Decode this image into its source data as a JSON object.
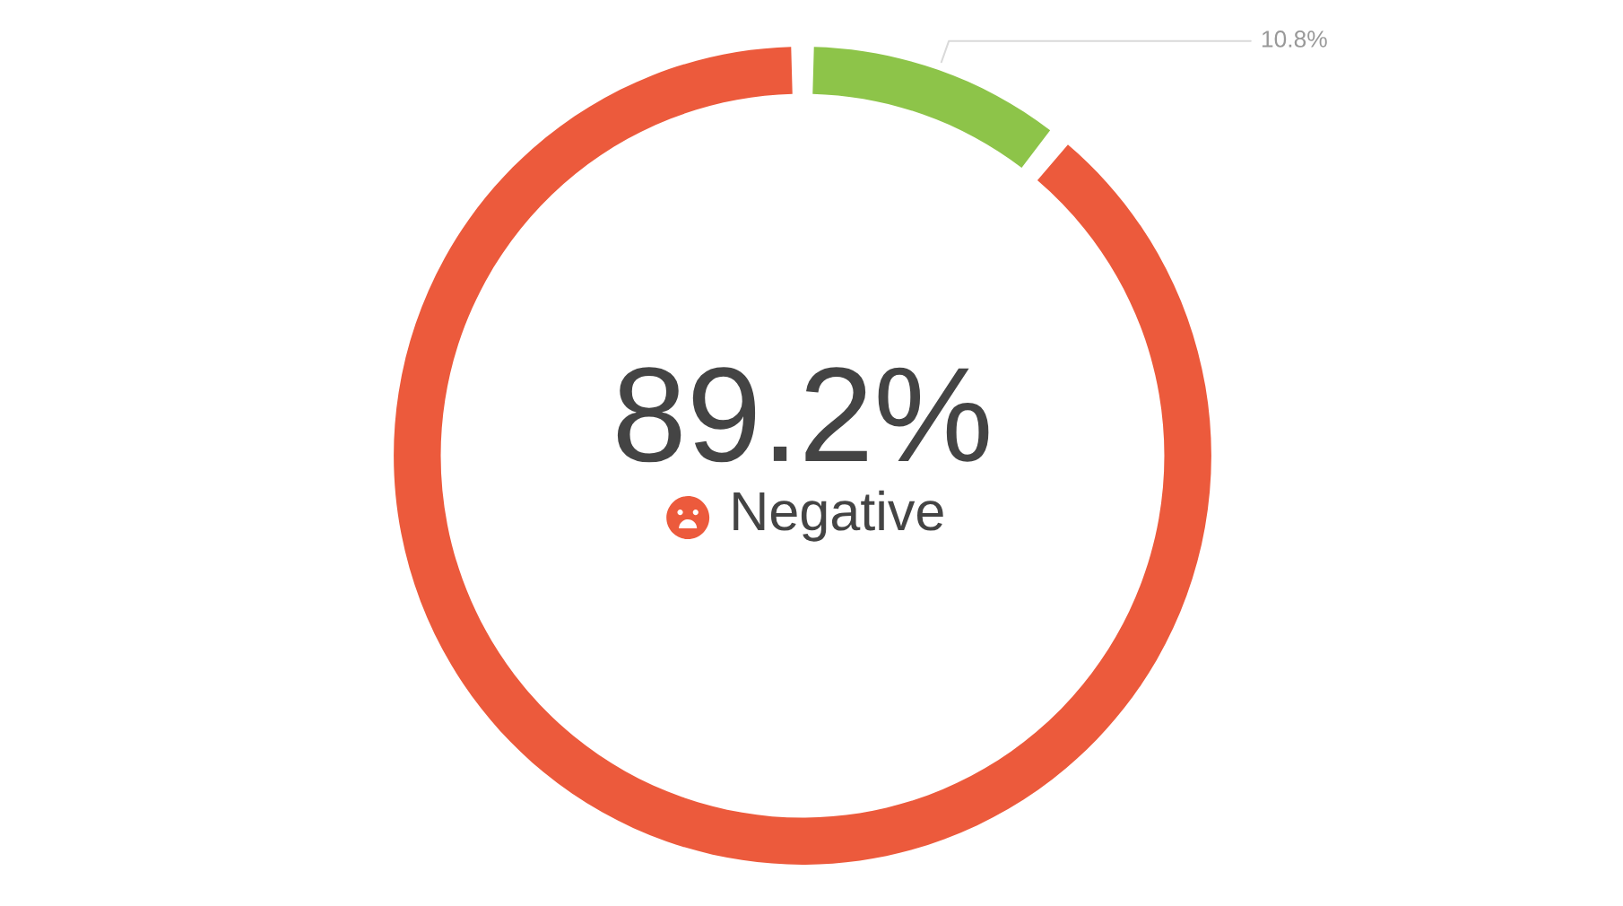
{
  "chart_data": {
    "type": "donut",
    "categories": [
      "Negative",
      null
    ],
    "values": [
      89.2,
      10.8
    ],
    "colors": [
      "#ec5a3c",
      "#8dc449"
    ],
    "value_labels": [
      "89.2%",
      "10.8%"
    ]
  }
}
